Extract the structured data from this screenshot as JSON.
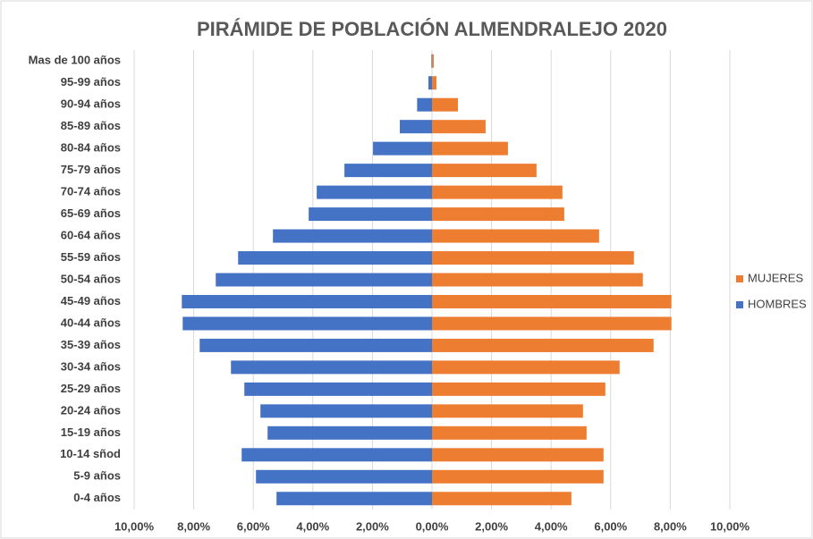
{
  "chart_data": {
    "type": "pyramid",
    "title": "PIRÁMIDE DE POBLACIÓN ALMENDRALEJO 2020",
    "categories": [
      "Mas de 100 años",
      "95-99 años",
      "90-94 años",
      "85-89 años",
      "80-84 años",
      "75-79 años",
      "70-74 años",
      "65-69 años",
      "60-64 años",
      "55-59 años",
      "50-54 años",
      "45-49 años",
      "40-44 años",
      "35-39 años",
      "30-34 años",
      "25-29 años",
      "20-24 años",
      "15-19 años",
      "10-14 sñod",
      "5-9 años",
      "0-4 años"
    ],
    "series": [
      {
        "name": "MUJERES",
        "color": "#ed7d31",
        "values": [
          0.06,
          0.15,
          0.87,
          1.8,
          2.55,
          3.51,
          4.38,
          4.44,
          5.61,
          6.78,
          7.08,
          8.04,
          8.04,
          7.44,
          6.3,
          5.82,
          5.07,
          5.19,
          5.76,
          5.76,
          4.68
        ]
      },
      {
        "name": "HOMBRES",
        "color": "#4472c4",
        "values": [
          -0.02,
          -0.12,
          -0.5,
          -1.08,
          -1.98,
          -2.94,
          -3.87,
          -4.14,
          -5.34,
          -6.51,
          -7.26,
          -8.4,
          -8.37,
          -7.8,
          -6.75,
          -6.3,
          -5.76,
          -5.52,
          -6.39,
          -5.91,
          -5.22
        ]
      }
    ],
    "xlim": [
      -10,
      10
    ],
    "xticks": [
      {
        "value": -10,
        "label": "10,00%"
      },
      {
        "value": -8,
        "label": "8,00%"
      },
      {
        "value": -6,
        "label": "6,00%"
      },
      {
        "value": -4,
        "label": "4,00%"
      },
      {
        "value": -2,
        "label": "2,00%"
      },
      {
        "value": 0,
        "label": "0,00%"
      },
      {
        "value": 2,
        "label": "2,00%"
      },
      {
        "value": 4,
        "label": "4,00%"
      },
      {
        "value": 6,
        "label": "6,00%"
      },
      {
        "value": 8,
        "label": "8,00%"
      },
      {
        "value": 10,
        "label": "10,00%"
      }
    ],
    "grid": true
  }
}
